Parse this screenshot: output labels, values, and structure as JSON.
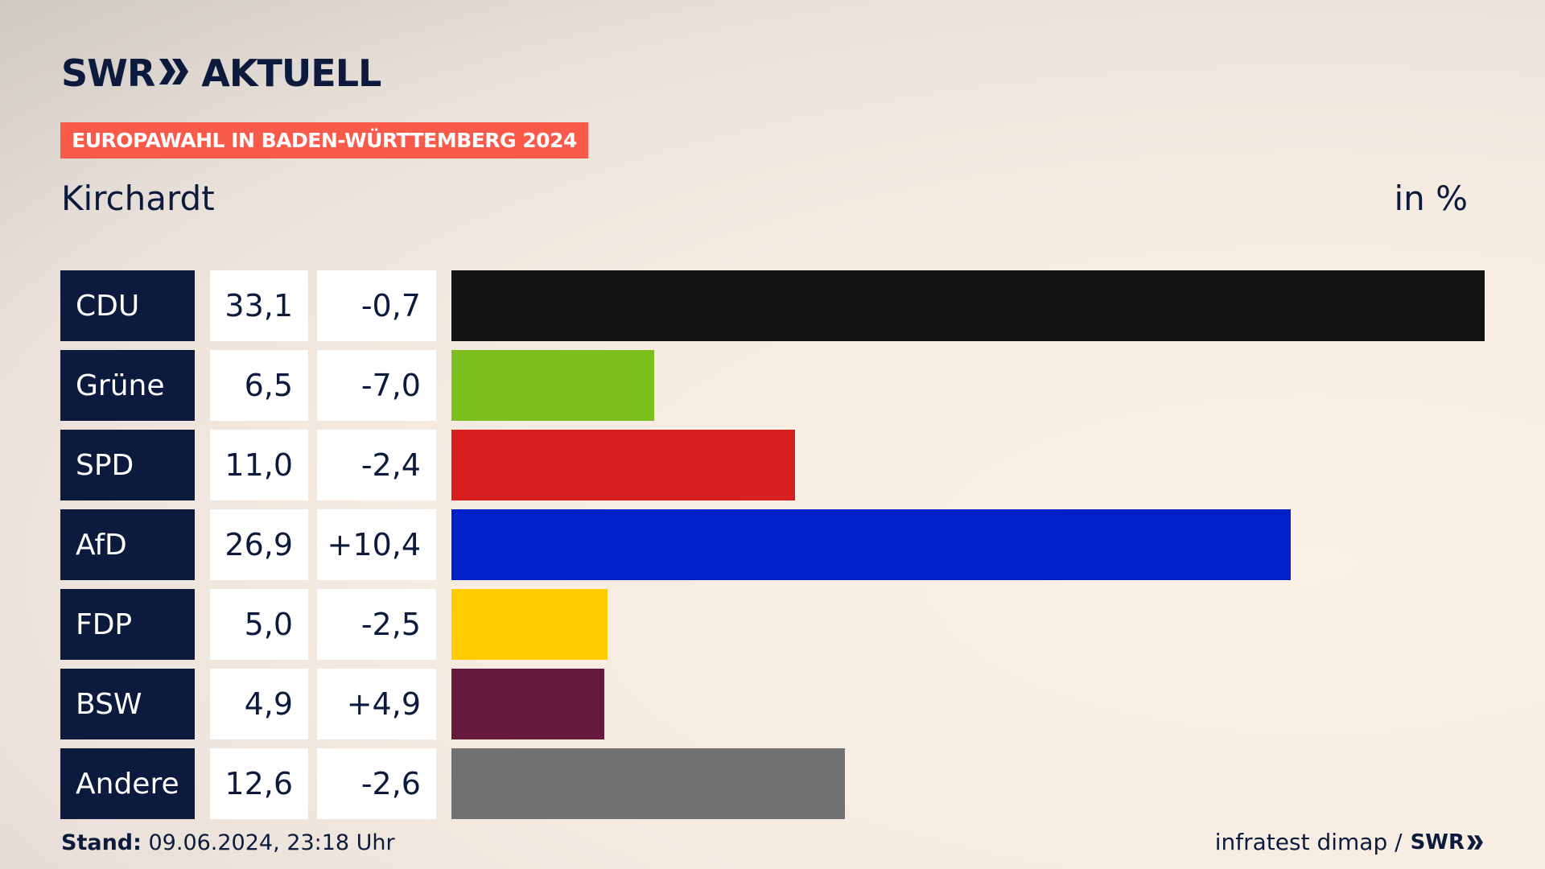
{
  "brand": {
    "swr": "SWR",
    "aktuell": "AKTUELL",
    "footer_swr": "SWR"
  },
  "banner": "EUROPAWAHL IN BADEN-WÜRTTEMBERG 2024",
  "place": "Kirchardt",
  "unit": "in %",
  "footer": {
    "stand_label": "Stand:",
    "stand_value": " 09.06.2024, 23:18 Uhr",
    "source": "infratest dimap /"
  },
  "chart_data": {
    "type": "bar",
    "title": "Kirchardt",
    "unit": "in %",
    "categories": [
      "CDU",
      "Grüne",
      "SPD",
      "AfD",
      "FDP",
      "BSW",
      "Andere"
    ],
    "values": [
      33.1,
      6.5,
      11.0,
      26.9,
      5.0,
      4.9,
      12.6
    ],
    "values_text": [
      "33,1",
      "6,5",
      "11,0",
      "26,9",
      "5,0",
      "4,9",
      "12,6"
    ],
    "diff_text": [
      "-0,7",
      "-7,0",
      "-2,4",
      "+10,4",
      "-2,5",
      "+4,9",
      "-2,6"
    ],
    "colors": [
      "#141414",
      "#7bbe1e",
      "#d71f1f",
      "#0021c8",
      "#ffcc00",
      "#661a3e",
      "#727272"
    ],
    "xlim": [
      0,
      33.1
    ]
  }
}
